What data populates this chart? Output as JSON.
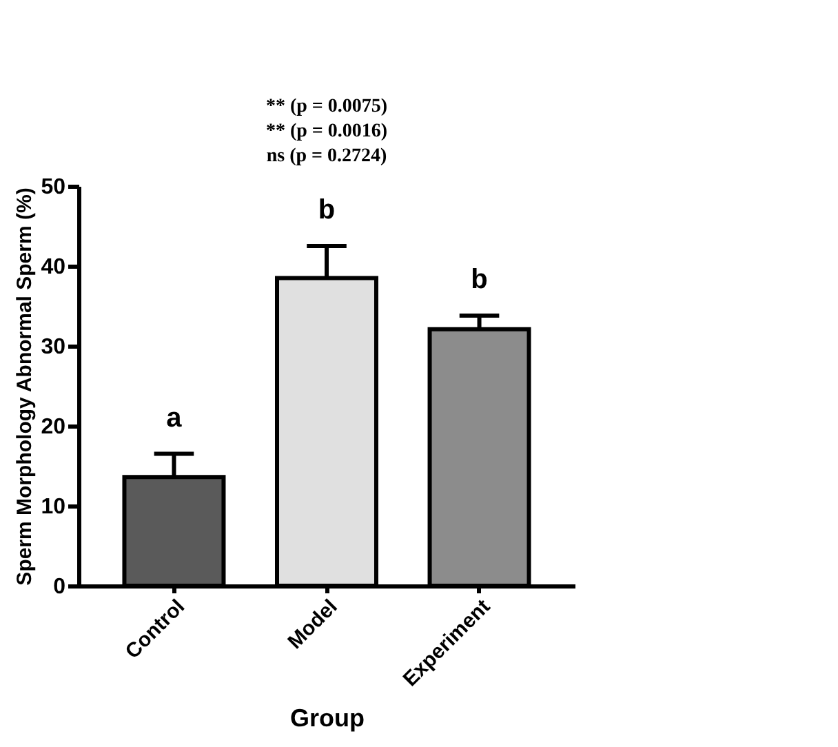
{
  "chart_data": {
    "type": "bar",
    "xlabel": "Group",
    "ylabel": "Sperm Morphology Abnormal Sperm (%)",
    "categories": [
      "Control",
      "Model",
      "Experiment"
    ],
    "values": [
      13.6,
      38.5,
      32.1
    ],
    "colors": [
      "#5a5a5a",
      "#e0e0e0",
      "#8c8c8c"
    ],
    "errors": [
      [
        13.6,
        16.5
      ],
      [
        38.5,
        42.5
      ],
      [
        32.1,
        33.8
      ]
    ],
    "ylim": [
      0,
      50
    ],
    "yticks": [
      0,
      10,
      20,
      30,
      40,
      50
    ],
    "grid": false,
    "annotations": [
      {
        "text": "a",
        "x": "Control",
        "y": 16.5
      },
      {
        "text": "b",
        "x": "Model",
        "y": 42.5
      },
      {
        "text": "b",
        "x": "Experiment",
        "y": 33.8
      },
      "** (p = 0.0075)",
      "** (p = 0.0016)",
      "ns (p = 0.2724)"
    ]
  }
}
